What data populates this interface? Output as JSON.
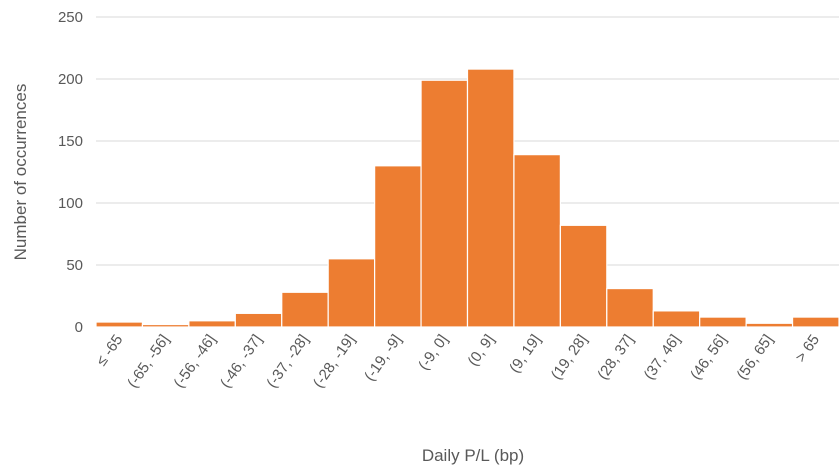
{
  "chart_data": {
    "type": "bar",
    "title": "",
    "xlabel": "Daily P/L (bp)",
    "ylabel": "Number of occurrences",
    "ylim": [
      0,
      250
    ],
    "yticks": [
      0,
      50,
      100,
      150,
      200,
      250
    ],
    "grid": true,
    "legend": "none",
    "bar_color": "#ED7D31",
    "categories": [
      "≤ -65",
      "(-65, -56]",
      "(-56, -46]",
      "(-46, -37]",
      "(-37, -28]",
      "(-28, -19]",
      "(-19, -9]",
      "(-9, 0]",
      "(0, 9]",
      "(9, 19]",
      "(19, 28]",
      "(28, 37]",
      "(37, 46]",
      "(46, 56]",
      "(56, 65]",
      "> 65"
    ],
    "values": [
      4,
      2,
      5,
      11,
      28,
      55,
      130,
      199,
      208,
      139,
      82,
      31,
      13,
      8,
      3,
      8
    ]
  }
}
